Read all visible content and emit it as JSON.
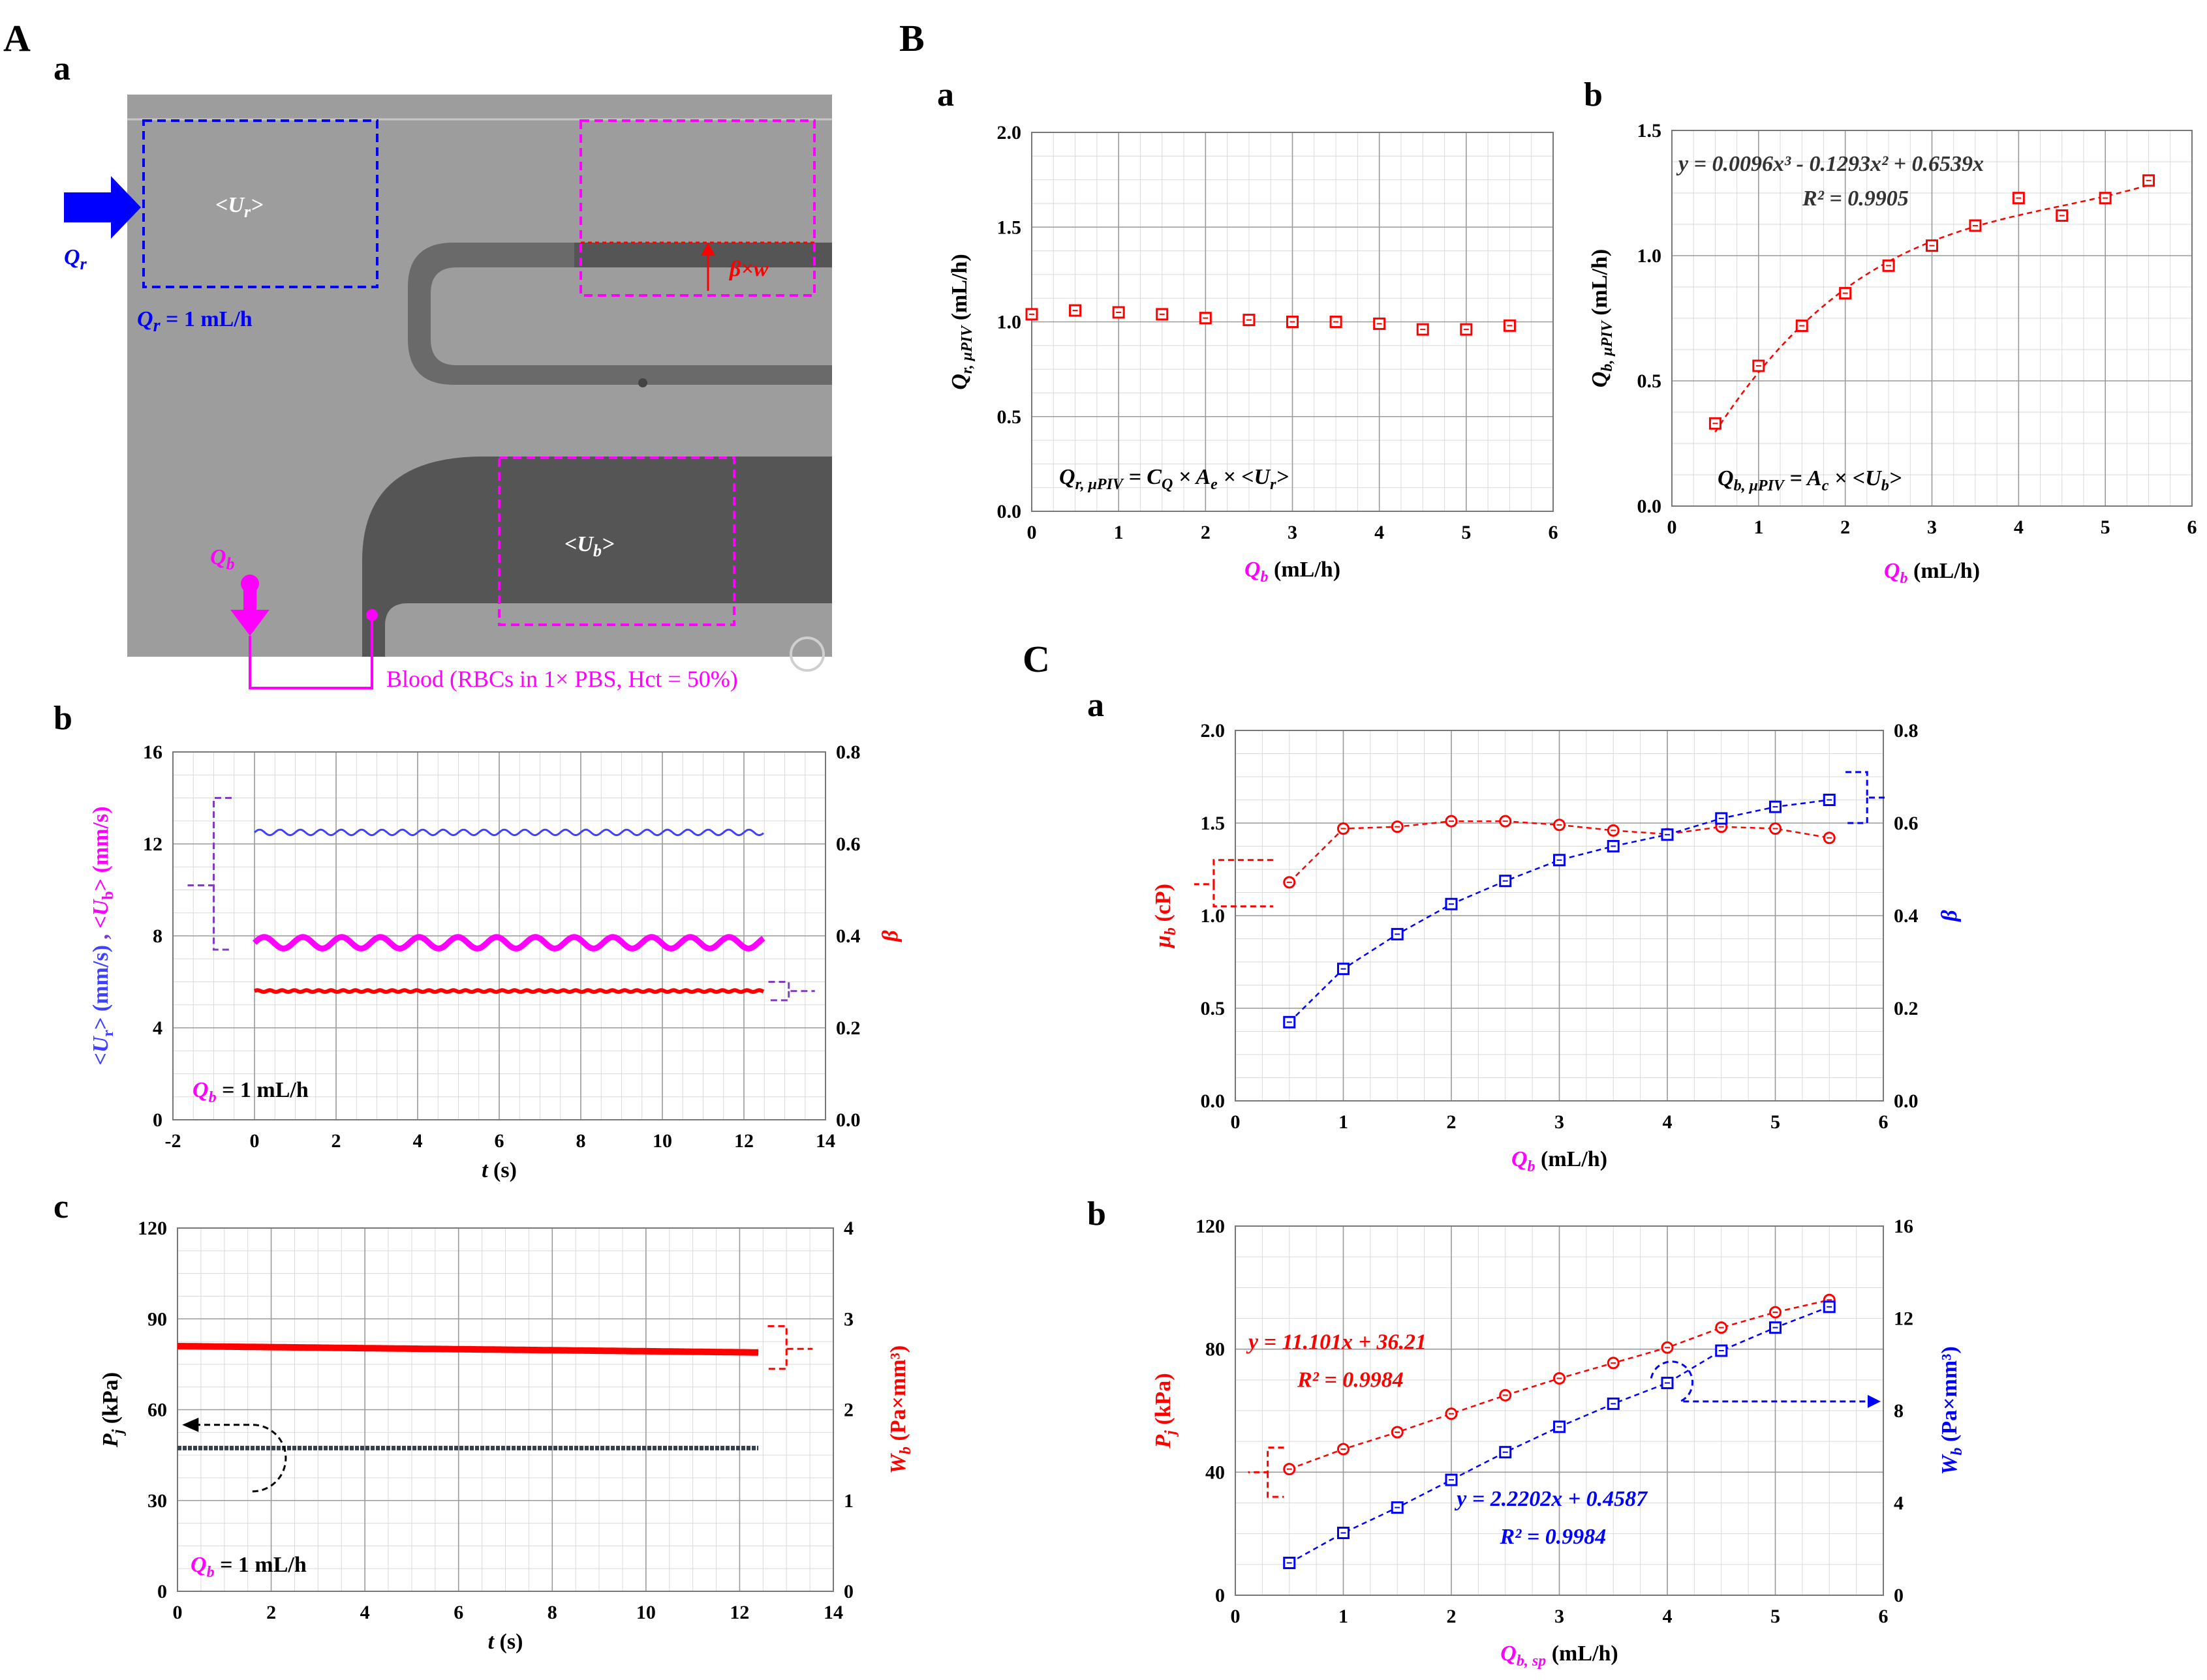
{
  "panel_letters": {
    "A": "A",
    "Aa": "a",
    "Ab": "b",
    "Ac": "c",
    "B": "B",
    "Ba": "a",
    "Bb": "b",
    "C": "C",
    "Ca": "a",
    "Cb": "b"
  },
  "micrograph": {
    "ur_label": "<U",
    "ur_sub": "r",
    "ub_label": "<U",
    "ub_sub": "b",
    "qr_label": "Q",
    "qr_sub": "r",
    "qr_value_text": " = 1 mL/h",
    "qb_label": "Q",
    "qb_sub": "b",
    "beta_w": "β×w",
    "blood_text": "Blood (RBCs in 1× PBS, Hct = 50%)",
    "colors": {
      "blue": "#0000ff",
      "magenta": "#ff00ff",
      "red": "#ff0000",
      "bg": "#9b9b9b",
      "dark": "#5a5a5a"
    }
  },
  "chart_data": [
    {
      "id": "Ab",
      "type": "line",
      "xlabel": "t (s)",
      "ylabel": "<Ur> (mm/s), <Ub> (mm/s)",
      "y2label": "β",
      "xlim": [
        -2,
        14
      ],
      "ylim": [
        0,
        16
      ],
      "y2lim": [
        0,
        0.8
      ],
      "xticks": [
        "-2",
        "0",
        "2",
        "4",
        "6",
        "8",
        "10",
        "12",
        "14"
      ],
      "yticks": [
        "0",
        "4",
        "8",
        "12",
        "16"
      ],
      "y2ticks": [
        "0.0",
        "0.2",
        "0.4",
        "0.6",
        "0.8"
      ],
      "annotation": "Q",
      "annotation_sub": "b",
      "annotation_rest": " = 1 mL/h",
      "series": [
        {
          "name": "<Ur>",
          "axis": "y",
          "color": "#4040ff",
          "x_range": [
            0,
            12.5
          ],
          "mean": 12.5,
          "amp": 0.12,
          "period": 0.5
        },
        {
          "name": "<Ub>",
          "axis": "y",
          "color": "#ff00ff",
          "x_range": [
            0,
            12.5
          ],
          "mean": 7.7,
          "amp": 0.25,
          "period": 0.95
        },
        {
          "name": "β",
          "axis": "y2",
          "color": "#ff0000",
          "x_range": [
            0,
            12.5
          ],
          "mean": 0.28,
          "amp": 0.002,
          "period": 0.3
        }
      ]
    },
    {
      "id": "Ac",
      "type": "line",
      "xlabel": "t (s)",
      "ylabel": "Pj (kPa)",
      "y2label": "Wb (Pa×mm³)",
      "xlim": [
        0,
        14
      ],
      "ylim": [
        0,
        120
      ],
      "y2lim": [
        0,
        4
      ],
      "xticks": [
        "0",
        "2",
        "4",
        "6",
        "8",
        "10",
        "12",
        "14"
      ],
      "yticks": [
        "0",
        "30",
        "60",
        "90",
        "120"
      ],
      "y2ticks": [
        "0",
        "1",
        "2",
        "3",
        "4"
      ],
      "annotation": "Q",
      "annotation_sub": "b",
      "annotation_rest": " = 1 mL/h",
      "series": [
        {
          "name": "Wb",
          "axis": "y2",
          "color": "#ff0000",
          "x_range": [
            0,
            12.4
          ],
          "start": 2.7,
          "end": 2.63
        },
        {
          "name": "Pj",
          "axis": "y",
          "color": "#33404d",
          "x_range": [
            0,
            12.4
          ],
          "start": 47.3,
          "end": 47.3
        }
      ]
    },
    {
      "id": "Ba",
      "type": "scatter",
      "xlabel": "Qb (mL/h)",
      "ylabel": "Qr, μPIV (mL/h)",
      "xlim": [
        0,
        6
      ],
      "ylim": [
        0,
        2
      ],
      "xticks": [
        "0",
        "1",
        "2",
        "3",
        "4",
        "5",
        "6"
      ],
      "yticks": [
        "0.0",
        "0.5",
        "1.0",
        "1.5",
        "2.0"
      ],
      "equation": "Qr, μPIV = CQ × Ae × <Ur>",
      "series": [
        {
          "name": "Qr,μPIV",
          "color": "#ff0000",
          "x": [
            0,
            0.5,
            1,
            1.5,
            2,
            2.5,
            3,
            3.5,
            4,
            4.5,
            5,
            5.5
          ],
          "y": [
            1.04,
            1.06,
            1.05,
            1.04,
            1.02,
            1.01,
            1.0,
            1.0,
            0.99,
            0.96,
            0.96,
            0.98
          ]
        }
      ]
    },
    {
      "id": "Bb",
      "type": "scatter",
      "xlabel": "Qb (mL/h)",
      "ylabel": "Qb, μPIV (mL/h)",
      "xlim": [
        0,
        6
      ],
      "ylim": [
        0,
        1.5
      ],
      "xticks": [
        "0",
        "1",
        "2",
        "3",
        "4",
        "5",
        "6"
      ],
      "yticks": [
        "0.0",
        "0.5",
        "1.0",
        "1.5"
      ],
      "fit_text": "y = 0.0096x³ - 0.1293x² + 0.6539x",
      "r2_text": "R² = 0.9905",
      "equation": "Qb, μPIV = Ac × <Ub>",
      "series": [
        {
          "name": "Qb,μPIV",
          "color": "#ff0000",
          "x": [
            0.5,
            1,
            1.5,
            2,
            2.5,
            3,
            3.5,
            4,
            4.5,
            5,
            5.5
          ],
          "y": [
            0.33,
            0.56,
            0.72,
            0.85,
            0.96,
            1.04,
            1.12,
            1.23,
            1.16,
            1.23,
            1.3
          ],
          "fit": [
            0.0096,
            -0.1293,
            0.6539
          ]
        }
      ]
    },
    {
      "id": "Ca",
      "type": "line",
      "xlabel": "Qb (mL/h)",
      "ylabel": "μb (cP)",
      "y2label": "β",
      "xlim": [
        0,
        6
      ],
      "ylim": [
        0,
        2
      ],
      "y2lim": [
        0,
        0.8
      ],
      "xticks": [
        "0",
        "1",
        "2",
        "3",
        "4",
        "5",
        "6"
      ],
      "yticks": [
        "0.0",
        "0.5",
        "1.0",
        "1.5",
        "2.0"
      ],
      "y2ticks": [
        "0.0",
        "0.2",
        "0.4",
        "0.6",
        "0.8"
      ],
      "series": [
        {
          "name": "μb",
          "axis": "y",
          "color": "#ff0000",
          "marker": "circle",
          "x": [
            0.5,
            1,
            1.5,
            2,
            2.5,
            3,
            3.5,
            4,
            4.5,
            5,
            5.5
          ],
          "y": [
            1.18,
            1.47,
            1.48,
            1.51,
            1.51,
            1.49,
            1.46,
            1.44,
            1.48,
            1.47,
            1.42
          ]
        },
        {
          "name": "β",
          "axis": "y2",
          "color": "#0000ff",
          "marker": "square",
          "x": [
            0.5,
            1,
            1.5,
            2,
            2.5,
            3,
            3.5,
            4,
            4.5,
            5,
            5.5
          ],
          "y": [
            0.17,
            0.285,
            0.36,
            0.425,
            0.475,
            0.52,
            0.55,
            0.575,
            0.61,
            0.635,
            0.65
          ]
        }
      ]
    },
    {
      "id": "Cb",
      "type": "line",
      "xlabel": "Qb, sp (mL/h)",
      "ylabel": "Pj (kPa)",
      "y2label": "Wb (Pa×mm³)",
      "xlim": [
        0,
        6
      ],
      "ylim": [
        0,
        120
      ],
      "y2lim": [
        0,
        16
      ],
      "xticks": [
        "0",
        "1",
        "2",
        "3",
        "4",
        "5",
        "6"
      ],
      "yticks": [
        "0",
        "40",
        "80",
        "120"
      ],
      "y2ticks": [
        "0",
        "4",
        "8",
        "12",
        "16"
      ],
      "fit1_text": "y = 11.101x + 36.21",
      "fit1_r2": "R² = 0.9984",
      "fit2_text": "y = 2.2202x + 0.4587",
      "fit2_r2": "R² = 0.9984",
      "series": [
        {
          "name": "Pj",
          "axis": "y",
          "color": "#ff0000",
          "marker": "circle",
          "x": [
            0.5,
            1,
            1.5,
            2,
            2.5,
            3,
            3.5,
            4,
            4.5,
            5,
            5.5
          ],
          "y": [
            41,
            47.5,
            53,
            59,
            65,
            70.5,
            75.5,
            80.5,
            87,
            92,
            96
          ]
        },
        {
          "name": "Wb",
          "axis": "y2",
          "color": "#0000ff",
          "marker": "square",
          "x": [
            0.5,
            1,
            1.5,
            2,
            2.5,
            3,
            3.5,
            4,
            4.5,
            5,
            5.5
          ],
          "y": [
            1.4,
            2.7,
            3.8,
            5.0,
            6.2,
            7.3,
            8.3,
            9.2,
            10.6,
            11.6,
            12.5
          ]
        }
      ]
    }
  ]
}
